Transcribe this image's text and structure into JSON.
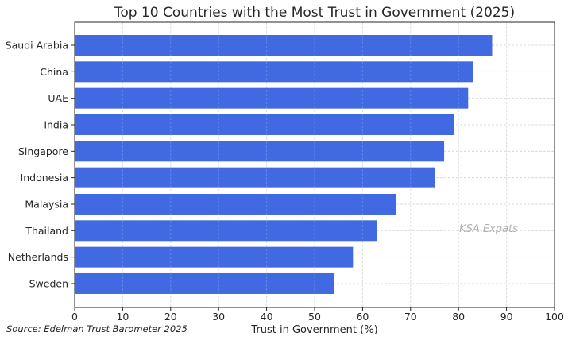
{
  "chart_data": {
    "type": "bar",
    "orientation": "horizontal",
    "title": "Top 10 Countries with the Most Trust in Government (2025)",
    "xlabel": "Trust in Government (%)",
    "ylabel": "",
    "xlim": [
      0,
      100
    ],
    "xticks": [
      "0",
      "10",
      "20",
      "30",
      "40",
      "50",
      "60",
      "70",
      "80",
      "90",
      "100"
    ],
    "grid": true,
    "categories": [
      "Saudi Arabia",
      "China",
      "UAE",
      "India",
      "Singapore",
      "Indonesia",
      "Malaysia",
      "Thailand",
      "Netherlands",
      "Sweden"
    ],
    "values": [
      87,
      83,
      82,
      79,
      77,
      75,
      67,
      63,
      58,
      54
    ],
    "bar_color": "#4169e1",
    "watermark": "KSA Expats",
    "source": "Source: Edelman Trust Barometer 2025"
  }
}
